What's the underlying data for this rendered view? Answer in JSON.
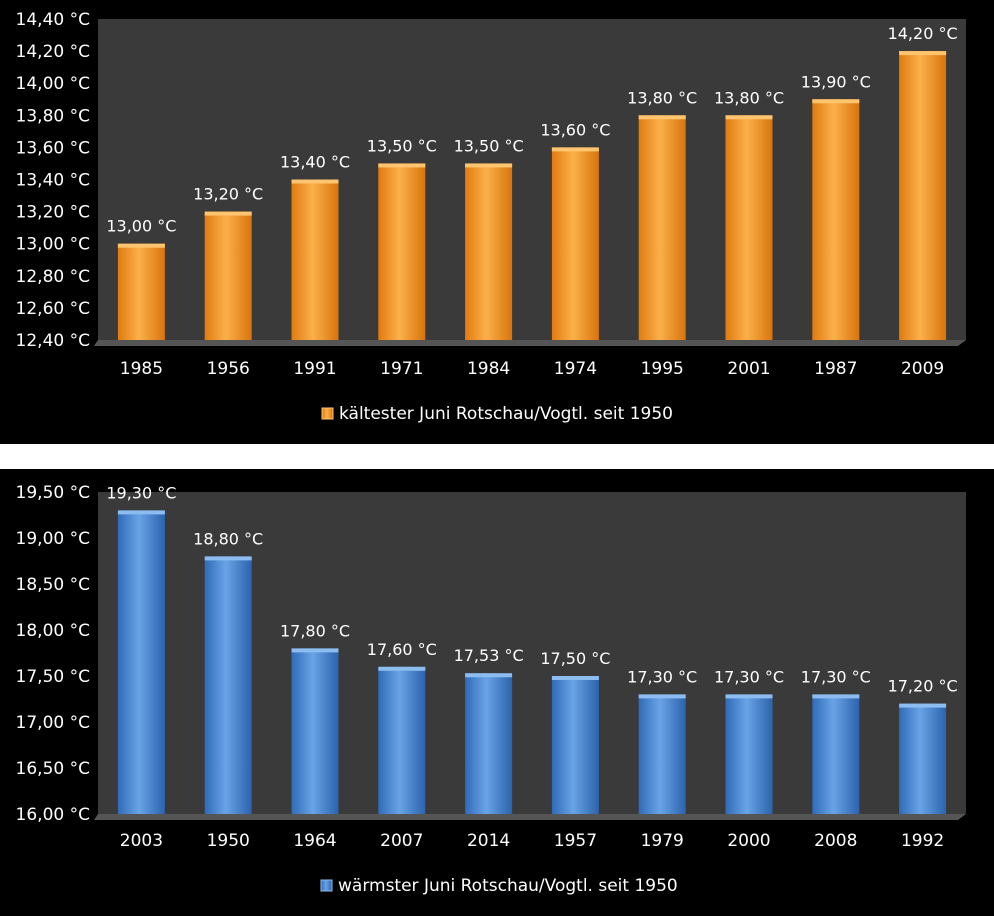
{
  "colors": {
    "background": "#000000",
    "plot_area": "#3a3a3a",
    "orange_bar": "#f39a26",
    "blue_bar": "#4a86d0",
    "text": "#ffffff"
  },
  "chart_data": [
    {
      "type": "bar",
      "title": "",
      "categories": [
        "1985",
        "1956",
        "1991",
        "1971",
        "1984",
        "1974",
        "1995",
        "2001",
        "1987",
        "2009"
      ],
      "series": [
        {
          "name": "kältester Juni Rotschau/Vogtl. seit 1950",
          "values": [
            13.0,
            13.2,
            13.4,
            13.5,
            13.5,
            13.6,
            13.8,
            13.8,
            13.9,
            14.2
          ],
          "data_labels": [
            "13,00 °C",
            "13,20 °C",
            "13,40 °C",
            "13,50 °C",
            "13,50 °C",
            "13,60 °C",
            "13,80 °C",
            "13,80 °C",
            "13,90 °C",
            "14,20 °C"
          ]
        }
      ],
      "ylim": [
        12.4,
        14.4
      ],
      "yticks": [
        12.4,
        12.6,
        12.8,
        13.0,
        13.2,
        13.4,
        13.6,
        13.8,
        14.0,
        14.2,
        14.4
      ],
      "ytick_labels": [
        "12,40 °C",
        "12,60 °C",
        "12,80 °C",
        "13,00 °C",
        "13,20 °C",
        "13,40 °C",
        "13,60 °C",
        "13,80 °C",
        "14,00 °C",
        "14,20 °C",
        "14,40 °C"
      ],
      "legend": "bottom",
      "grid": false,
      "color": "orange"
    },
    {
      "type": "bar",
      "title": "",
      "categories": [
        "2003",
        "1950",
        "1964",
        "2007",
        "2014",
        "1957",
        "1979",
        "2000",
        "2008",
        "1992"
      ],
      "series": [
        {
          "name": "wärmster Juni Rotschau/Vogtl. seit 1950",
          "values": [
            19.3,
            18.8,
            17.8,
            17.6,
            17.53,
            17.5,
            17.3,
            17.3,
            17.3,
            17.2
          ],
          "data_labels": [
            "19,30 °C",
            "18,80 °C",
            "17,80 °C",
            "17,60 °C",
            "17,53 °C",
            "17,50 °C",
            "17,30 °C",
            "17,30 °C",
            "17,30 °C",
            "17,20 °C"
          ]
        }
      ],
      "ylim": [
        16.0,
        19.5
      ],
      "yticks": [
        16.0,
        16.5,
        17.0,
        17.5,
        18.0,
        18.5,
        19.0,
        19.5
      ],
      "ytick_labels": [
        "16,00 °C",
        "16,50 °C",
        "17,00 °C",
        "17,50 °C",
        "18,00 °C",
        "18,50 °C",
        "19,00 °C",
        "19,50 °C"
      ],
      "legend": "bottom",
      "grid": false,
      "color": "blue"
    }
  ]
}
